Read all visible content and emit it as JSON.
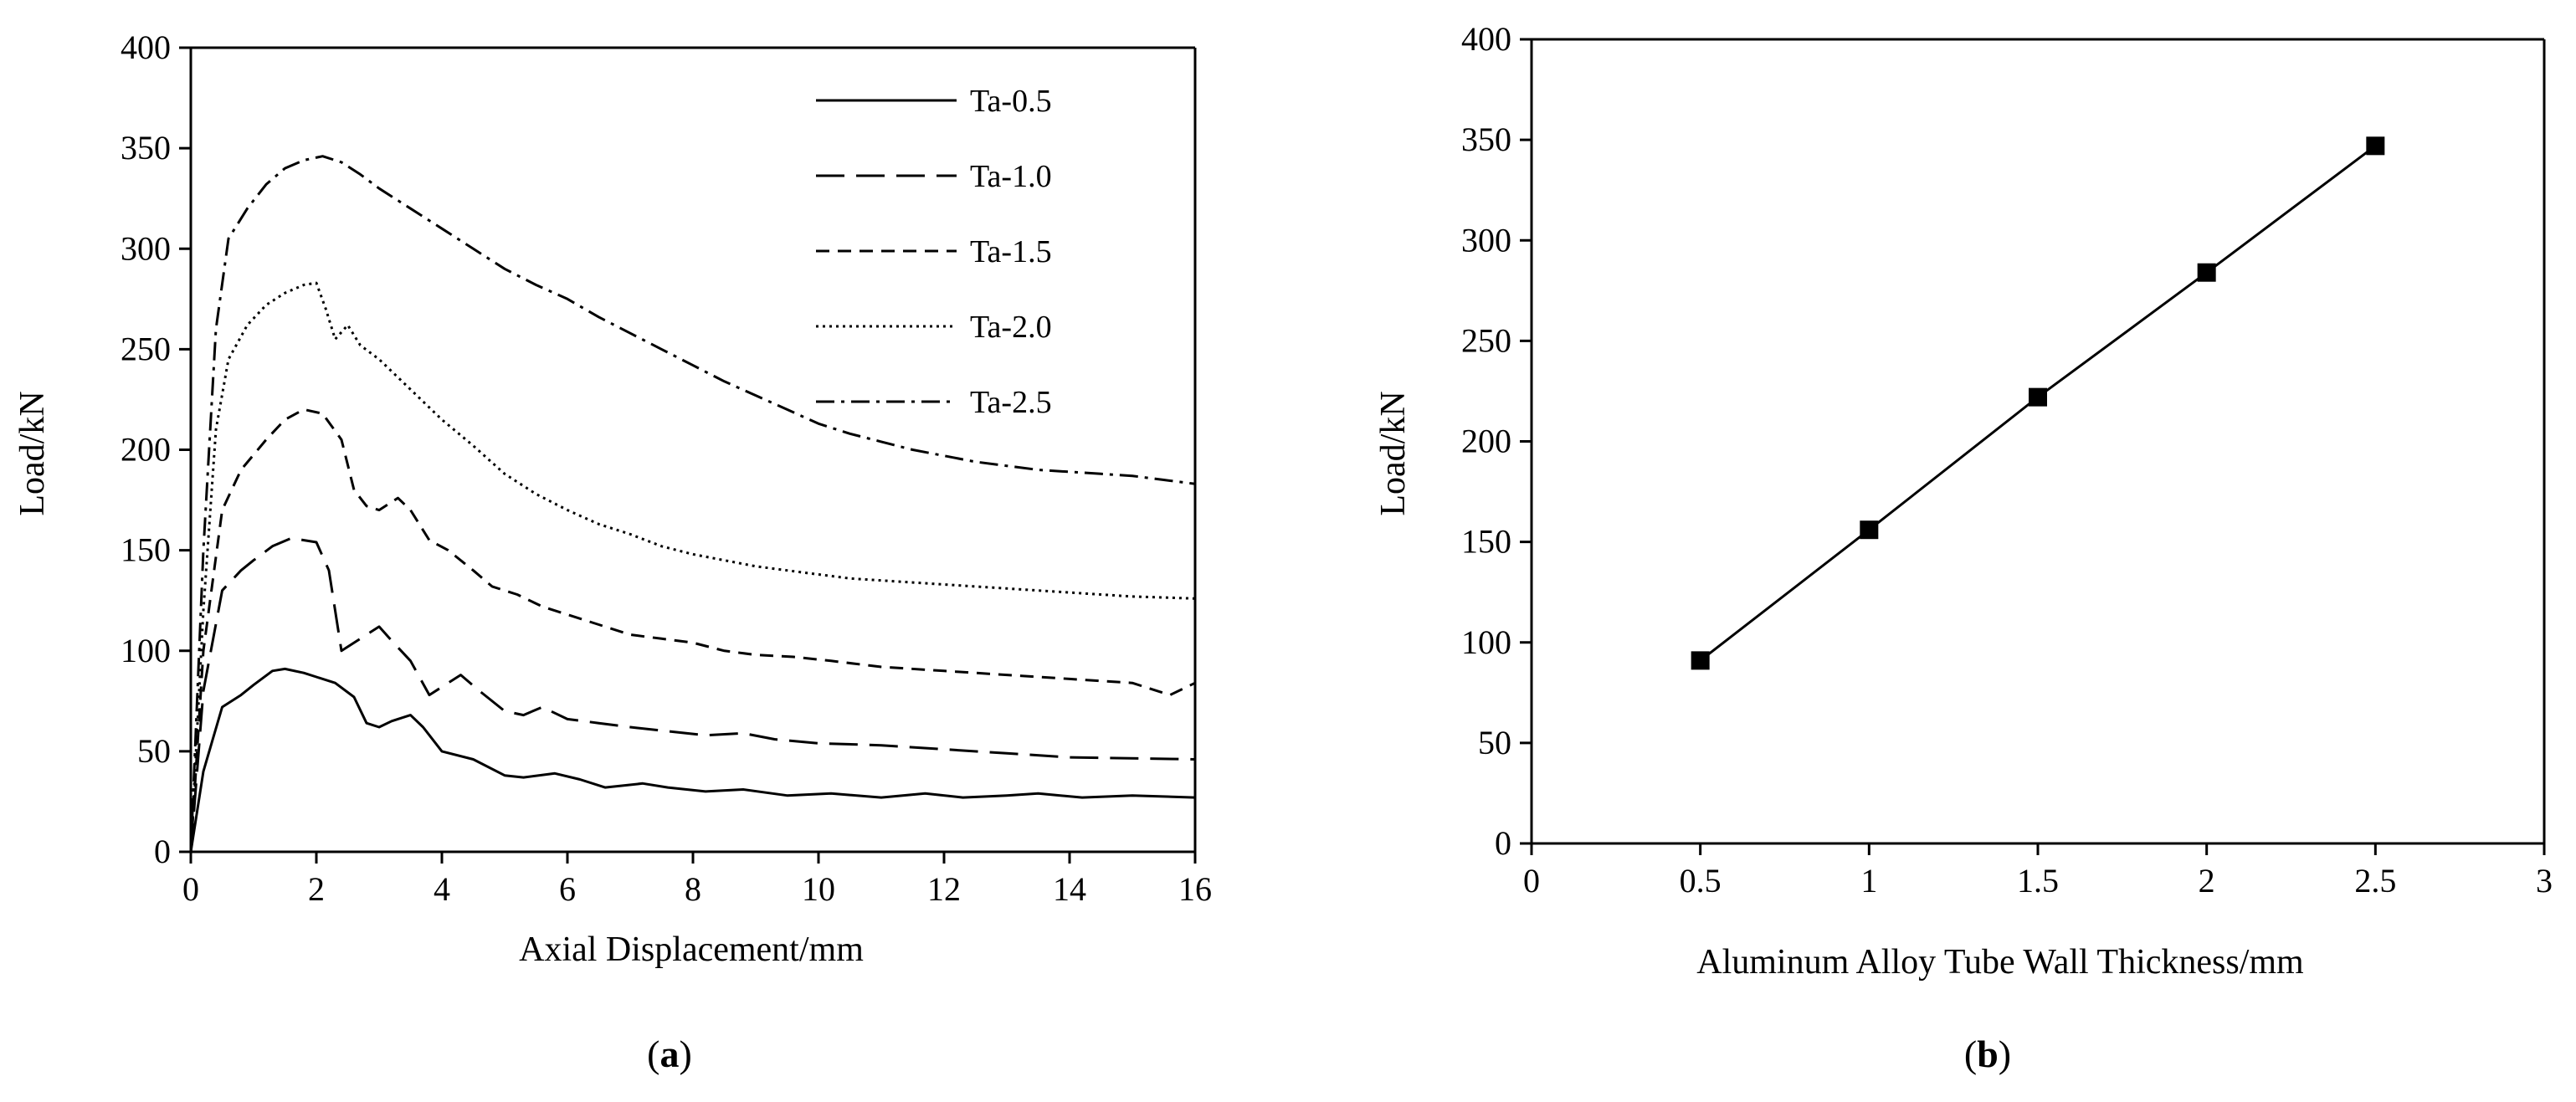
{
  "chart_data": [
    {
      "type": "line",
      "panel_label": "a",
      "xlabel": "Axial Displacement/mm",
      "ylabel": "Load/kN",
      "xlim": [
        0,
        16
      ],
      "ylim": [
        0,
        400
      ],
      "xticks": [
        0,
        2,
        4,
        6,
        8,
        10,
        12,
        14,
        16
      ],
      "yticks": [
        0,
        50,
        100,
        150,
        200,
        250,
        300,
        350,
        400
      ],
      "grid": false,
      "legend": "top-right",
      "series": [
        {
          "name": "Ta-0.5",
          "dash": "solid",
          "x": [
            0,
            0.2,
            0.5,
            0.8,
            1.0,
            1.3,
            1.5,
            1.8,
            2.0,
            2.3,
            2.6,
            2.8,
            3.0,
            3.2,
            3.5,
            3.7,
            4.0,
            4.5,
            5.0,
            5.3,
            5.8,
            6.2,
            6.6,
            7.2,
            7.6,
            8.2,
            8.8,
            9.5,
            10.2,
            11.0,
            11.7,
            12.3,
            13.0,
            13.5,
            14.2,
            15.0,
            16.0
          ],
          "y": [
            0,
            40,
            72,
            78,
            83,
            90,
            91,
            89,
            87,
            84,
            77,
            64,
            62,
            65,
            68,
            62,
            50,
            46,
            38,
            37,
            39,
            36,
            32,
            34,
            32,
            30,
            31,
            28,
            29,
            27,
            29,
            27,
            28,
            29,
            27,
            28,
            27
          ]
        },
        {
          "name": "Ta-1.0",
          "dash": "long-dash",
          "x": [
            0,
            0.2,
            0.5,
            0.8,
            1.0,
            1.3,
            1.6,
            2.0,
            2.2,
            2.4,
            2.6,
            2.8,
            3.0,
            3.2,
            3.5,
            3.8,
            4.0,
            4.3,
            4.6,
            5.0,
            5.3,
            5.6,
            6.0,
            6.5,
            7.0,
            7.6,
            8.2,
            8.8,
            9.3,
            10.0,
            11.0,
            12.0,
            13.0,
            14.0,
            16.0
          ],
          "y": [
            0,
            80,
            130,
            140,
            145,
            152,
            156,
            154,
            140,
            100,
            104,
            108,
            112,
            105,
            95,
            78,
            82,
            88,
            80,
            70,
            68,
            72,
            66,
            64,
            62,
            60,
            58,
            59,
            56,
            54,
            53,
            51,
            49,
            47,
            46
          ]
        },
        {
          "name": "Ta-1.5",
          "dash": "short-dash",
          "x": [
            0,
            0.2,
            0.5,
            0.8,
            1.2,
            1.5,
            1.8,
            2.1,
            2.4,
            2.6,
            2.8,
            3.0,
            3.3,
            3.5,
            3.8,
            4.1,
            4.5,
            4.8,
            5.2,
            5.6,
            6.0,
            6.6,
            7.0,
            7.5,
            8.0,
            8.5,
            9.0,
            9.6,
            10.2,
            11.0,
            12.0,
            13.0,
            14.0,
            15.0,
            15.6,
            16.0
          ],
          "y": [
            0,
            100,
            170,
            190,
            205,
            215,
            220,
            218,
            205,
            180,
            172,
            170,
            176,
            170,
            155,
            150,
            140,
            132,
            128,
            122,
            118,
            112,
            108,
            106,
            104,
            100,
            98,
            97,
            95,
            92,
            90,
            88,
            86,
            84,
            78,
            84
          ]
        },
        {
          "name": "Ta-2.0",
          "dash": "dotted",
          "x": [
            0,
            0.2,
            0.4,
            0.6,
            0.9,
            1.2,
            1.5,
            1.8,
            2.0,
            2.15,
            2.3,
            2.5,
            2.7,
            3.0,
            3.5,
            4.0,
            4.5,
            5.0,
            5.5,
            6.0,
            6.5,
            7.0,
            7.5,
            8.0,
            8.5,
            9.0,
            9.5,
            10.0,
            10.5,
            11.0,
            11.5,
            12.0,
            12.5,
            13.0,
            13.5,
            14.0,
            14.5,
            15.0,
            16.0
          ],
          "y": [
            0,
            120,
            210,
            245,
            262,
            272,
            278,
            282,
            283,
            270,
            255,
            262,
            252,
            245,
            230,
            215,
            202,
            188,
            178,
            170,
            163,
            158,
            152,
            148,
            145,
            142,
            140,
            138,
            136,
            135,
            134,
            133,
            132,
            131,
            130,
            129,
            128,
            127,
            126
          ]
        },
        {
          "name": "Ta-2.5",
          "dash": "dash-dot",
          "x": [
            0,
            0.2,
            0.4,
            0.6,
            0.9,
            1.2,
            1.5,
            1.8,
            2.1,
            2.4,
            2.7,
            3.0,
            3.5,
            4.0,
            4.5,
            5.0,
            5.5,
            6.0,
            6.5,
            7.0,
            7.5,
            8.0,
            8.5,
            9.0,
            9.5,
            10.0,
            10.5,
            11.0,
            11.5,
            12.0,
            12.5,
            13.0,
            13.5,
            14.0,
            14.5,
            15.0,
            15.5,
            16.0
          ],
          "y": [
            0,
            150,
            260,
            305,
            320,
            332,
            340,
            344,
            346,
            343,
            337,
            330,
            320,
            310,
            300,
            290,
            282,
            275,
            266,
            258,
            250,
            242,
            234,
            227,
            220,
            213,
            208,
            204,
            200,
            197,
            194,
            192,
            190,
            189,
            188,
            187,
            185,
            183
          ]
        }
      ]
    },
    {
      "type": "line",
      "panel_label": "b",
      "xlabel": "Aluminum Alloy Tube Wall Thickness/mm",
      "ylabel": "Load/kN",
      "xlim": [
        0,
        3
      ],
      "ylim": [
        0,
        400
      ],
      "xticks": [
        0,
        0.5,
        1,
        1.5,
        2,
        2.5,
        3
      ],
      "yticks": [
        0,
        50,
        100,
        150,
        200,
        250,
        300,
        350,
        400
      ],
      "grid": false,
      "markers": "square",
      "series": [
        {
          "x": [
            0.5,
            1.0,
            1.5,
            2.0,
            2.5
          ],
          "y": [
            91,
            156,
            222,
            284,
            347
          ]
        }
      ]
    }
  ]
}
